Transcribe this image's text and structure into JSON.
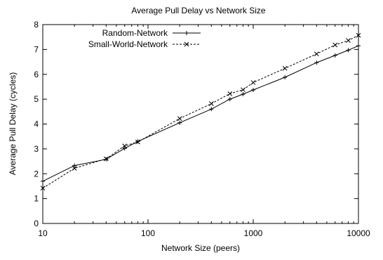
{
  "chart_data": {
    "type": "line",
    "title": "Average Pull Delay vs Network Size",
    "xlabel": "Network Size (peers)",
    "ylabel": "Average Pull Delay (cycles)",
    "x_scale": "log",
    "xlim": [
      10,
      10000
    ],
    "ylim": [
      0,
      8
    ],
    "x_ticks": [
      10,
      100,
      1000,
      10000
    ],
    "x_tick_labels": [
      "10",
      "100",
      "1000",
      "10000"
    ],
    "y_ticks": [
      0,
      1,
      2,
      3,
      4,
      5,
      6,
      7,
      8
    ],
    "y_tick_labels": [
      "0",
      "1",
      "2",
      "3",
      "4",
      "5",
      "6",
      "7",
      "8"
    ],
    "grid": false,
    "legend_position": "top-left",
    "series": [
      {
        "name": "Random-Network",
        "line_style": "solid",
        "marker": "plus",
        "color": "#000000",
        "x": [
          10,
          20,
          40,
          60,
          80,
          200,
          400,
          600,
          800,
          1000,
          2000,
          4000,
          6000,
          8000,
          10000
        ],
        "y": [
          1.7,
          2.33,
          2.58,
          3.02,
          3.3,
          4.05,
          4.6,
          5.0,
          5.2,
          5.37,
          5.88,
          6.47,
          6.76,
          6.97,
          7.15
        ]
      },
      {
        "name": "Small-World-Network",
        "line_style": "dashed",
        "marker": "cross",
        "color": "#000000",
        "x": [
          10,
          20,
          40,
          60,
          80,
          200,
          400,
          600,
          800,
          1000,
          2000,
          4000,
          6000,
          8000,
          10000
        ],
        "y": [
          1.42,
          2.22,
          2.6,
          3.12,
          3.28,
          4.22,
          4.82,
          5.22,
          5.38,
          5.67,
          6.24,
          6.82,
          7.18,
          7.36,
          7.57
        ]
      }
    ]
  }
}
